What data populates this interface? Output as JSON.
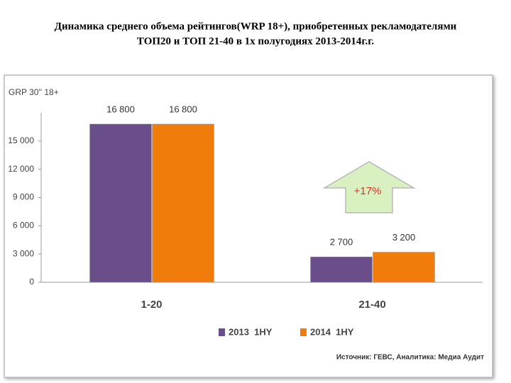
{
  "chart_data": {
    "type": "bar",
    "title": [
      "Динамика среднего объема рейтингов(WRP 18+), приобретенных рекламодателями",
      "ТОП20  и ТОП 21-40  в 1х полугодиях 2013-2014г.г."
    ],
    "y_label": "GRP 30'' 18+",
    "categories": [
      "1-20",
      "21-40"
    ],
    "series": [
      {
        "name": "2013  1HY",
        "color": "#6a4e8c",
        "values": [
          16800,
          2700
        ],
        "value_labels": [
          "16 800",
          "2 700"
        ]
      },
      {
        "name": "2014  1HY",
        "color": "#f07c0c",
        "values": [
          16800,
          3200
        ],
        "value_labels": [
          "16 800",
          "3 200"
        ]
      }
    ],
    "ylim": [
      0,
      18000
    ],
    "yticks": [
      0,
      {
        "value": 3000,
        "label": "3 000"
      },
      {
        "value": 6000,
        "label": "6 000"
      },
      {
        "value": 9000,
        "label": "9 000"
      },
      {
        "value": 12000,
        "label": "12 000"
      },
      {
        "value": 15000,
        "label": "15 000"
      }
    ],
    "annotation": "+17%",
    "source": "Источник: ГЕВС, Аналитика: Медиа Аудит"
  }
}
